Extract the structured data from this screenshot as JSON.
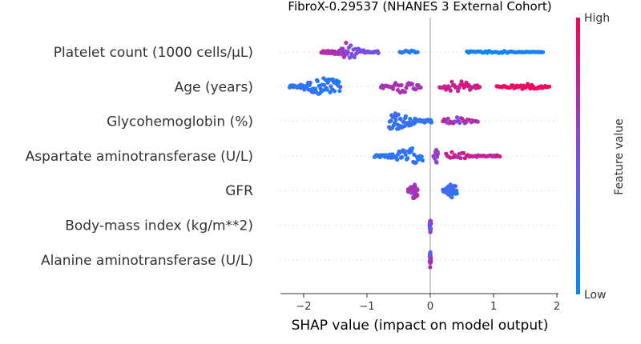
{
  "chart_data": {
    "type": "scatter",
    "subtype": "shap-beeswarm",
    "title": "FibroX-0.29537 (NHANES 3 External Cohort)",
    "xlabel": "SHAP value (impact on model output)",
    "xlim": [
      -2.35,
      2.05
    ],
    "xticks": [
      {
        "value": -2,
        "label": "−2"
      },
      {
        "value": -1,
        "label": "−1"
      },
      {
        "value": 0,
        "label": "0"
      },
      {
        "value": 1,
        "label": "1"
      },
      {
        "value": 2,
        "label": "2"
      }
    ],
    "colorbar": {
      "label": "Feature value",
      "high_label": "High",
      "low_label": "Low",
      "high_color": "#ff0052",
      "low_color": "#008bfb"
    },
    "features": [
      {
        "name": "Platelet count (1000 cells/µL)",
        "groups": [
          {
            "min": -1.72,
            "max": -1.33,
            "n": 38,
            "v0": 0.55,
            "v1": 0.85,
            "spread": 1.0,
            "peak": -1.33
          },
          {
            "min": -1.33,
            "max": -0.82,
            "n": 36,
            "v0": 0.35,
            "v1": 0.6,
            "spread": 0.8,
            "peak": -1.3
          },
          {
            "min": -0.48,
            "max": -0.2,
            "n": 10,
            "v0": 0.1,
            "v1": 0.18,
            "spread": 0.25,
            "peak": -0.35
          },
          {
            "min": 0.58,
            "max": 1.78,
            "n": 46,
            "v0": 0.0,
            "v1": 0.12,
            "spread": 0.15,
            "peak": 0.9
          }
        ]
      },
      {
        "name": "Age (years)",
        "groups": [
          {
            "min": -2.22,
            "max": -1.42,
            "n": 70,
            "v0": 0.05,
            "v1": 0.35,
            "spread": 1.0,
            "peak": -1.65
          },
          {
            "min": -0.78,
            "max": -0.15,
            "n": 34,
            "v0": 0.6,
            "v1": 0.75,
            "spread": 0.7,
            "peak": -0.45
          },
          {
            "min": 0.15,
            "max": 0.78,
            "n": 34,
            "v0": 0.75,
            "v1": 0.9,
            "spread": 0.7,
            "peak": 0.45
          },
          {
            "min": 1.05,
            "max": 1.88,
            "n": 40,
            "v0": 0.9,
            "v1": 1.0,
            "spread": 0.3,
            "peak": 1.5
          }
        ]
      },
      {
        "name": "Glycohemoglobin (%)",
        "groups": [
          {
            "min": -0.65,
            "max": 0.02,
            "n": 70,
            "v0": 0.1,
            "v1": 0.35,
            "spread": 1.0,
            "peak": -0.55
          },
          {
            "min": 0.2,
            "max": 0.75,
            "n": 28,
            "v0": 0.5,
            "v1": 0.9,
            "spread": 0.45,
            "peak": 0.4
          }
        ]
      },
      {
        "name": "Aspartate aminotransferase (U/L)",
        "groups": [
          {
            "min": -0.88,
            "max": -0.12,
            "n": 52,
            "v0": 0.1,
            "v1": 0.3,
            "spread": 0.85,
            "peak": -0.3
          },
          {
            "min": 0.05,
            "max": 0.12,
            "n": 18,
            "v0": 0.5,
            "v1": 0.65,
            "spread": 0.8,
            "peak": 0.1
          },
          {
            "min": 0.25,
            "max": 1.1,
            "n": 38,
            "v0": 0.6,
            "v1": 0.95,
            "spread": 0.45,
            "peak": 0.35
          }
        ]
      },
      {
        "name": "GFR",
        "groups": [
          {
            "min": -0.35,
            "max": -0.2,
            "n": 44,
            "v0": 0.5,
            "v1": 0.85,
            "spread": 1.0,
            "peak": -0.25
          },
          {
            "min": 0.2,
            "max": 0.42,
            "n": 40,
            "v0": 0.15,
            "v1": 0.35,
            "spread": 0.85,
            "peak": 0.35
          }
        ]
      },
      {
        "name": "Body-mass index (kg/m**2)",
        "groups": [
          {
            "min": -0.01,
            "max": 0.01,
            "n": 24,
            "v0": 0.2,
            "v1": 0.8,
            "spread": 1.0,
            "peak": 0.0
          }
        ]
      },
      {
        "name": "Alanine aminotransferase (U/L)",
        "groups": [
          {
            "min": -0.01,
            "max": 0.01,
            "n": 22,
            "v0": 0.2,
            "v1": 0.8,
            "spread": 1.0,
            "peak": 0.0
          }
        ]
      }
    ]
  }
}
